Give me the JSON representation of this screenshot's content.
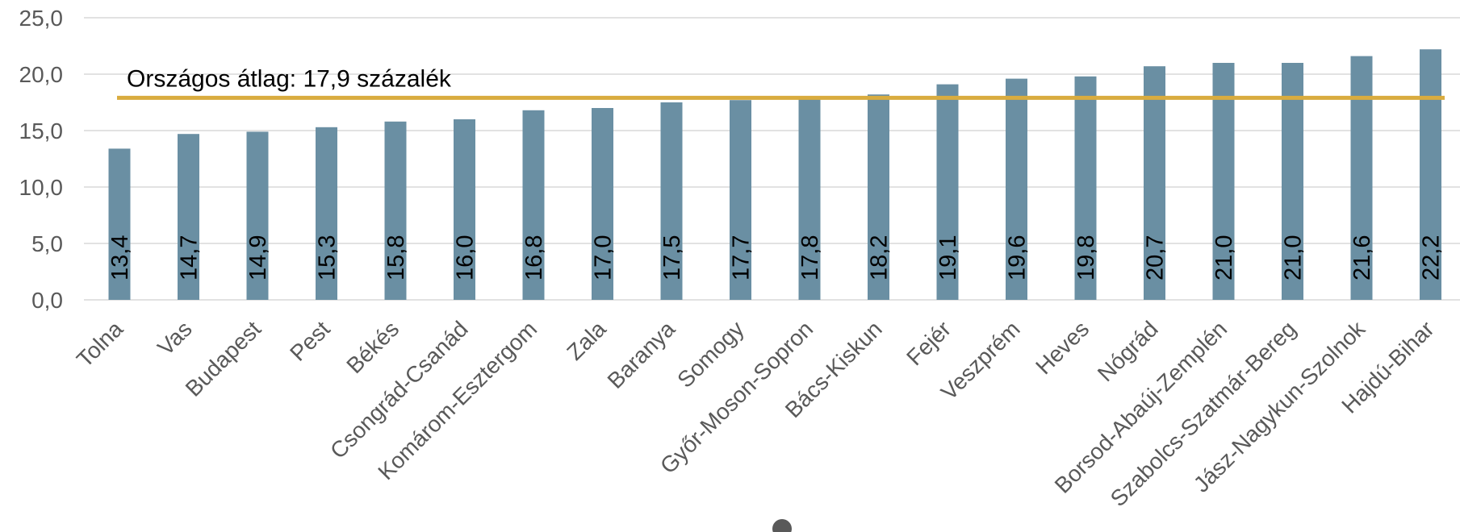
{
  "chart_data": {
    "type": "bar",
    "categories": [
      "Tolna",
      "Vas",
      "Budapest",
      "Pest",
      "Békés",
      "Csongrád-Csanád",
      "Komárom-Esztergom",
      "Zala",
      "Baranya",
      "Somogy",
      "Győr-Moson-Sopron",
      "Bács-Kiskun",
      "Fejér",
      "Veszprém",
      "Heves",
      "Nógrád",
      "Borsod-Abaúj-Zemplén",
      "Szabolcs-Szatmár-Bereg",
      "Jász-Nagykun-Szolnok",
      "Hajdú-Bihar"
    ],
    "values": [
      13.4,
      14.7,
      14.9,
      15.3,
      15.8,
      16.0,
      16.8,
      17.0,
      17.5,
      17.7,
      17.8,
      18.2,
      19.1,
      19.6,
      19.8,
      20.7,
      21.0,
      21.0,
      21.6,
      22.2
    ],
    "value_labels": [
      "13,4",
      "14,7",
      "14,9",
      "15,3",
      "15,8",
      "16,0",
      "16,8",
      "17,0",
      "17,5",
      "17,7",
      "17,8",
      "18,2",
      "19,1",
      "19,6",
      "19,8",
      "20,7",
      "21,0",
      "21,0",
      "21,6",
      "22,2"
    ],
    "yticks": [
      0,
      5,
      10,
      15,
      20,
      25
    ],
    "ytick_labels": [
      "0,0",
      "5,0",
      "10,0",
      "15,0",
      "20,0",
      "25,0"
    ],
    "ylim": [
      0,
      25
    ],
    "average": {
      "value": 17.9,
      "label": "Országos átlag: 17,9 százalék"
    },
    "grid": true,
    "legend": "none",
    "colors": {
      "bar": "#6a8fa3",
      "average_line": "#d9ac3f",
      "grid": "#d9d9d9",
      "axis_text": "#595959"
    }
  }
}
